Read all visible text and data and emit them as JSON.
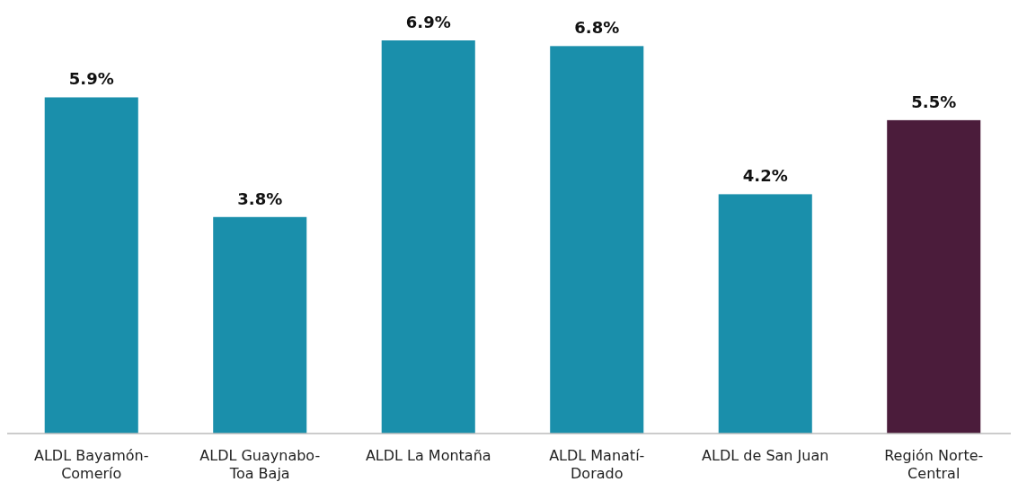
{
  "chart_data": {
    "type": "bar",
    "categories": [
      "ALDL Bayamón-\nComerío",
      "ALDL Guaynabo-\nToa Baja",
      "ALDL La Montaña",
      "ALDL Manatí-\nDorado",
      "ALDL de San Juan",
      "Región Norte-\nCentral"
    ],
    "values": [
      5.9,
      3.8,
      6.9,
      6.8,
      4.2,
      5.5
    ],
    "colors": [
      "#1a8fab",
      "#1a8fab",
      "#1a8fab",
      "#1a8fab",
      "#1a8fab",
      "#4b1c3b"
    ],
    "value_labels": [
      "5.9%",
      "3.8%",
      "6.9%",
      "6.8%",
      "4.2%",
      "5.5%"
    ]
  }
}
